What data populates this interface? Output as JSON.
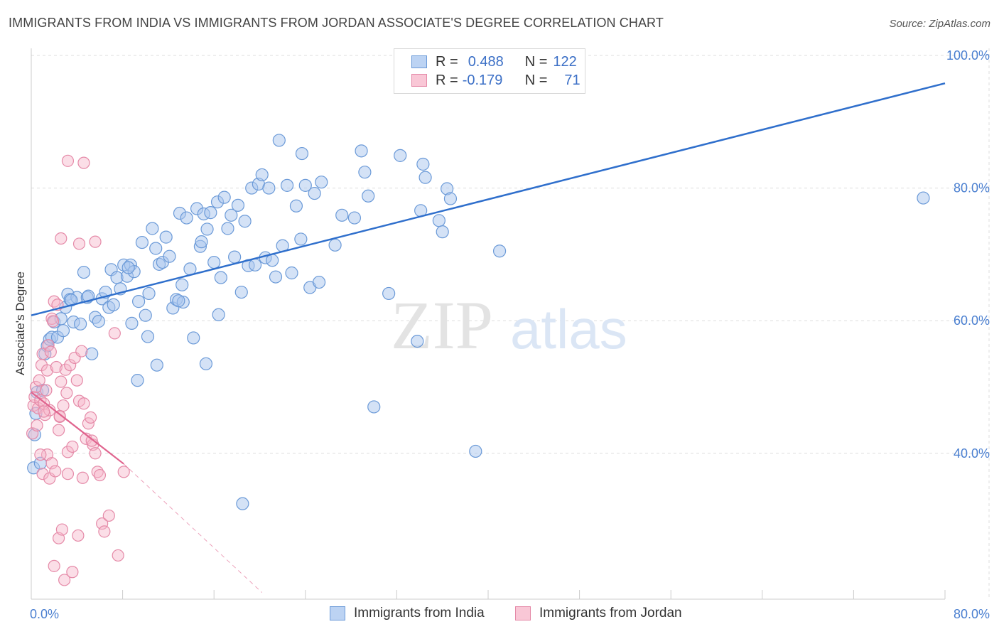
{
  "header": {
    "title": "IMMIGRANTS FROM INDIA VS IMMIGRANTS FROM JORDAN ASSOCIATE'S DEGREE CORRELATION CHART",
    "source": "Source: ZipAtlas.com"
  },
  "watermark": {
    "zip": "ZIP",
    "atlas": "atlas"
  },
  "legend": {
    "india": {
      "r_label": "R =",
      "r_value": "0.488",
      "n_label": "N =",
      "n_value": "122"
    },
    "jordan": {
      "r_label": "R =",
      "r_value": "-0.179",
      "n_label": "N =",
      "n_value": "71"
    }
  },
  "colors": {
    "india_fill": "#a9c6ee",
    "india_stroke": "#6b9ad8",
    "india_line": "#2f6fcc",
    "jordan_fill": "#f7b6c9",
    "jordan_stroke": "#e58aa8",
    "jordan_line": "#e0648e",
    "grid": "#dddddd",
    "tick_text": "#4a7fd0"
  },
  "chart_data": {
    "type": "scatter",
    "title": "IMMIGRANTS FROM INDIA VS IMMIGRANTS FROM JORDAN ASSOCIATE'S DEGREE CORRELATION CHART",
    "xlabel": "",
    "ylabel": "Associate's Degree",
    "xlim": [
      0,
      80
    ],
    "ylim": [
      18,
      100
    ],
    "x_tick_labels": [
      {
        "value": 0,
        "label": "0.0%"
      },
      {
        "value": 80,
        "label": "80.0%"
      }
    ],
    "y_tick_labels": [
      {
        "value": 100,
        "label": "100.0%"
      },
      {
        "value": 80,
        "label": "80.0%"
      },
      {
        "value": 60,
        "label": "60.0%"
      },
      {
        "value": 40,
        "label": "40.0%"
      }
    ],
    "legend_labels": [
      "Immigrants from India",
      "Immigrants from Jordan"
    ],
    "series": [
      {
        "name": "Immigrants from India",
        "trend": {
          "x": [
            0,
            80
          ],
          "y": [
            60.8,
            95.8
          ]
        },
        "points": [
          [
            0.2,
            37.8
          ],
          [
            0.3,
            42.8
          ],
          [
            0.4,
            46.0
          ],
          [
            0.5,
            49.2
          ],
          [
            0.8,
            38.5
          ],
          [
            1.0,
            49.5
          ],
          [
            1.2,
            55.0
          ],
          [
            1.4,
            56.2
          ],
          [
            1.6,
            57.2
          ],
          [
            1.8,
            57.5
          ],
          [
            2.0,
            59.8
          ],
          [
            2.3,
            57.5
          ],
          [
            2.6,
            60.3
          ],
          [
            2.8,
            58.5
          ],
          [
            3.0,
            62.0
          ],
          [
            3.2,
            64.0
          ],
          [
            3.4,
            63.2
          ],
          [
            3.7,
            59.8
          ],
          [
            4.0,
            63.5
          ],
          [
            4.3,
            59.5
          ],
          [
            4.6,
            67.3
          ],
          [
            4.9,
            63.5
          ],
          [
            5.3,
            55.0
          ],
          [
            5.6,
            60.5
          ],
          [
            5.9,
            59.9
          ],
          [
            6.2,
            63.3
          ],
          [
            6.5,
            64.3
          ],
          [
            6.8,
            62.0
          ],
          [
            7.0,
            67.7
          ],
          [
            7.2,
            62.4
          ],
          [
            7.5,
            66.5
          ],
          [
            7.8,
            64.8
          ],
          [
            8.1,
            68.4
          ],
          [
            8.4,
            66.7
          ],
          [
            8.7,
            68.4
          ],
          [
            9.0,
            67.4
          ],
          [
            8.8,
            59.6
          ],
          [
            9.4,
            62.9
          ],
          [
            9.7,
            71.8
          ],
          [
            10.0,
            60.8
          ],
          [
            10.3,
            64.1
          ],
          [
            10.6,
            73.9
          ],
          [
            10.9,
            70.9
          ],
          [
            11.2,
            68.5
          ],
          [
            11.5,
            68.8
          ],
          [
            11.8,
            72.6
          ],
          [
            12.1,
            69.7
          ],
          [
            11.0,
            53.3
          ],
          [
            12.4,
            61.9
          ],
          [
            12.7,
            63.2
          ],
          [
            13.0,
            76.2
          ],
          [
            13.3,
            62.8
          ],
          [
            13.6,
            75.5
          ],
          [
            13.9,
            67.8
          ],
          [
            14.2,
            57.4
          ],
          [
            14.5,
            76.9
          ],
          [
            14.8,
            71.2
          ],
          [
            15.1,
            76.1
          ],
          [
            15.4,
            73.8
          ],
          [
            15.7,
            76.3
          ],
          [
            16.0,
            68.8
          ],
          [
            16.3,
            77.9
          ],
          [
            16.6,
            66.5
          ],
          [
            16.9,
            78.6
          ],
          [
            17.2,
            73.9
          ],
          [
            17.5,
            75.9
          ],
          [
            17.8,
            69.6
          ],
          [
            18.1,
            77.4
          ],
          [
            18.4,
            64.3
          ],
          [
            18.7,
            75.0
          ],
          [
            19.0,
            68.3
          ],
          [
            19.3,
            80.0
          ],
          [
            19.6,
            68.4
          ],
          [
            19.9,
            80.6
          ],
          [
            20.2,
            82.0
          ],
          [
            20.5,
            69.5
          ],
          [
            20.8,
            80.0
          ],
          [
            21.1,
            69.1
          ],
          [
            21.4,
            66.6
          ],
          [
            21.7,
            87.2
          ],
          [
            22.0,
            71.3
          ],
          [
            22.4,
            80.4
          ],
          [
            22.8,
            67.2
          ],
          [
            23.2,
            77.3
          ],
          [
            23.6,
            72.3
          ],
          [
            24.0,
            80.4
          ],
          [
            24.4,
            65.0
          ],
          [
            24.8,
            79.2
          ],
          [
            25.2,
            65.8
          ],
          [
            25.4,
            80.9
          ],
          [
            15.3,
            53.5
          ],
          [
            16.4,
            60.9
          ],
          [
            9.3,
            51.0
          ],
          [
            12.9,
            63.0
          ],
          [
            26.6,
            71.4
          ],
          [
            27.2,
            75.9
          ],
          [
            28.3,
            75.5
          ],
          [
            28.9,
            85.6
          ],
          [
            29.2,
            82.4
          ],
          [
            29.5,
            78.8
          ],
          [
            30.0,
            47.0
          ],
          [
            31.3,
            64.1
          ],
          [
            32.3,
            84.9
          ],
          [
            33.8,
            56.9
          ],
          [
            34.1,
            76.6
          ],
          [
            34.3,
            83.6
          ],
          [
            34.5,
            81.6
          ],
          [
            35.7,
            75.1
          ],
          [
            36.0,
            73.4
          ],
          [
            36.4,
            79.9
          ],
          [
            36.7,
            78.4
          ],
          [
            38.9,
            40.3
          ],
          [
            41.0,
            70.5
          ],
          [
            78.1,
            78.5
          ],
          [
            23.7,
            85.2
          ],
          [
            18.5,
            32.4
          ],
          [
            14.9,
            71.9
          ],
          [
            3.5,
            63.1
          ],
          [
            5.0,
            63.7
          ],
          [
            8.5,
            68.0
          ],
          [
            13.2,
            65.4
          ],
          [
            10.2,
            57.6
          ]
        ]
      },
      {
        "name": "Immigrants from Jordan",
        "trend": {
          "x": [
            0,
            8.1
          ],
          "y": [
            49.2,
            38.4
          ]
        },
        "trend_ext": {
          "x": [
            8.1,
            20.2
          ],
          "y": [
            38.4,
            19.0
          ]
        },
        "points": [
          [
            0.1,
            43.0
          ],
          [
            0.2,
            47.2
          ],
          [
            0.3,
            48.5
          ],
          [
            0.4,
            50.0
          ],
          [
            0.5,
            44.2
          ],
          [
            0.6,
            46.8
          ],
          [
            0.7,
            51.0
          ],
          [
            0.8,
            48.0
          ],
          [
            0.9,
            53.3
          ],
          [
            1.0,
            55.0
          ],
          [
            1.1,
            47.5
          ],
          [
            1.2,
            45.8
          ],
          [
            1.3,
            49.5
          ],
          [
            1.4,
            52.5
          ],
          [
            1.5,
            56.3
          ],
          [
            1.6,
            46.5
          ],
          [
            1.7,
            55.3
          ],
          [
            1.8,
            60.3
          ],
          [
            1.9,
            59.9
          ],
          [
            2.0,
            62.9
          ],
          [
            2.2,
            53.0
          ],
          [
            2.3,
            62.4
          ],
          [
            2.4,
            43.5
          ],
          [
            2.5,
            45.5
          ],
          [
            2.6,
            50.8
          ],
          [
            2.8,
            47.2
          ],
          [
            3.0,
            52.6
          ],
          [
            3.1,
            49.1
          ],
          [
            3.2,
            40.2
          ],
          [
            3.4,
            53.3
          ],
          [
            3.6,
            41.0
          ],
          [
            3.8,
            54.4
          ],
          [
            4.0,
            51.0
          ],
          [
            4.2,
            47.9
          ],
          [
            4.4,
            55.4
          ],
          [
            4.6,
            47.5
          ],
          [
            4.8,
            42.2
          ],
          [
            5.0,
            44.5
          ],
          [
            5.2,
            45.4
          ],
          [
            5.4,
            41.3
          ],
          [
            5.6,
            40.0
          ],
          [
            5.8,
            37.2
          ],
          [
            6.0,
            36.7
          ],
          [
            6.2,
            29.4
          ],
          [
            6.4,
            28.2
          ],
          [
            6.8,
            30.6
          ],
          [
            7.3,
            58.1
          ],
          [
            7.6,
            24.6
          ],
          [
            8.1,
            37.2
          ],
          [
            2.6,
            72.4
          ],
          [
            3.2,
            84.1
          ],
          [
            4.2,
            71.6
          ],
          [
            4.6,
            83.8
          ],
          [
            5.6,
            71.9
          ],
          [
            1.0,
            36.9
          ],
          [
            1.4,
            39.8
          ],
          [
            1.6,
            36.2
          ],
          [
            1.8,
            38.5
          ],
          [
            2.1,
            37.3
          ],
          [
            2.4,
            27.2
          ],
          [
            2.7,
            28.5
          ],
          [
            3.2,
            36.9
          ],
          [
            3.6,
            22.1
          ],
          [
            4.1,
            27.6
          ],
          [
            4.5,
            36.3
          ],
          [
            5.3,
            41.9
          ],
          [
            0.8,
            39.8
          ],
          [
            1.1,
            46.3
          ],
          [
            2.0,
            23.0
          ],
          [
            2.9,
            20.9
          ],
          [
            2.5,
            45.6
          ]
        ]
      }
    ]
  }
}
